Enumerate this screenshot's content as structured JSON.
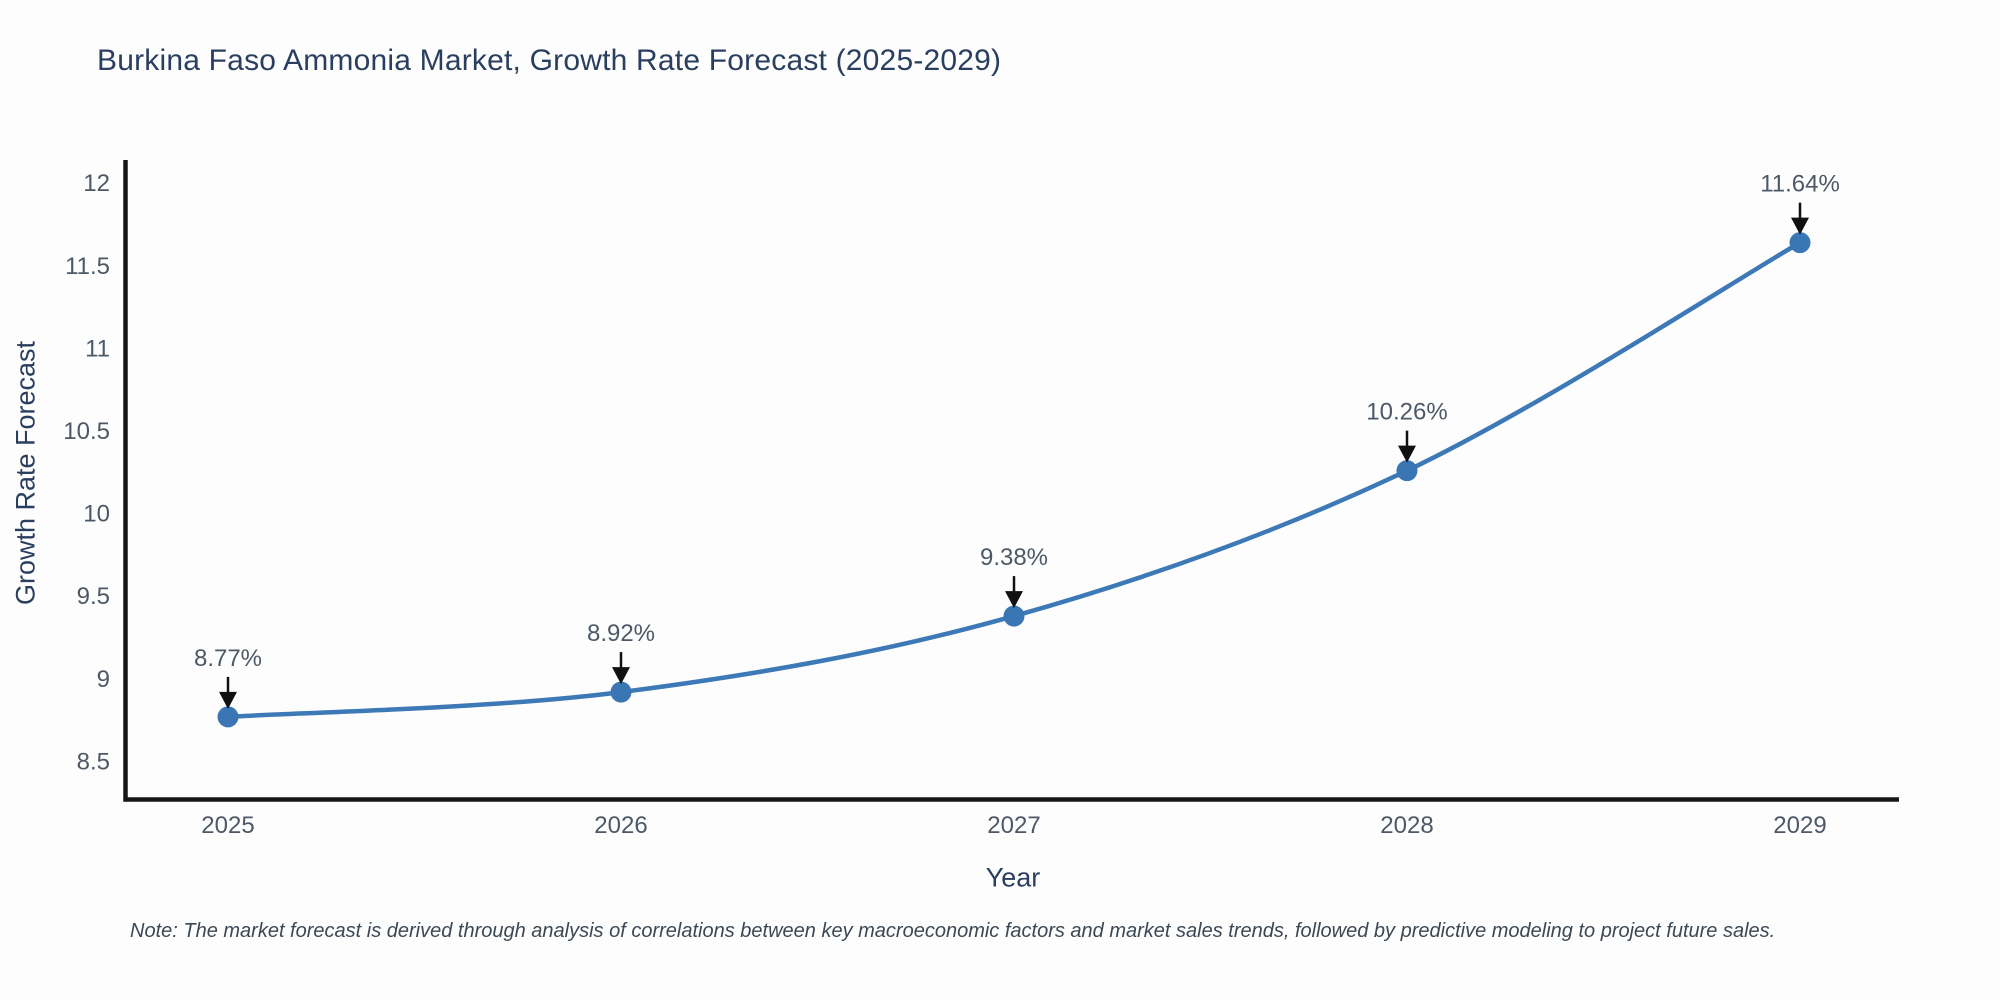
{
  "chart_data": {
    "type": "line",
    "title": "Burkina Faso Ammonia Market, Growth Rate Forecast (2025-2029)",
    "xlabel": "Year",
    "ylabel": "Growth Rate Forecast",
    "categories": [
      "2025",
      "2026",
      "2027",
      "2028",
      "2029"
    ],
    "values": [
      8.77,
      8.92,
      9.38,
      10.26,
      11.64
    ],
    "point_labels": [
      "8.77%",
      "8.92%",
      "9.38%",
      "10.26%",
      "11.64%"
    ],
    "yticks": [
      "8.5",
      "9",
      "9.5",
      "10",
      "10.5",
      "11",
      "11.5",
      "12"
    ],
    "ytick_values": [
      8.5,
      9,
      9.5,
      10,
      10.5,
      11,
      11.5,
      12
    ],
    "ylim": [
      8.27,
      12.14
    ],
    "grid": false,
    "legend": "none",
    "line_color": "#3c79b6",
    "marker_color": "#3a76b4",
    "arrow_color": "#111111",
    "axis_color": "#161616",
    "tick_color": "#4d5966",
    "title_color": "#2a3f5f",
    "note": "Note: The market forecast is derived through analysis of correlations between key macroeconomic factors and market sales trends, followed by predictive modeling to project future sales."
  }
}
